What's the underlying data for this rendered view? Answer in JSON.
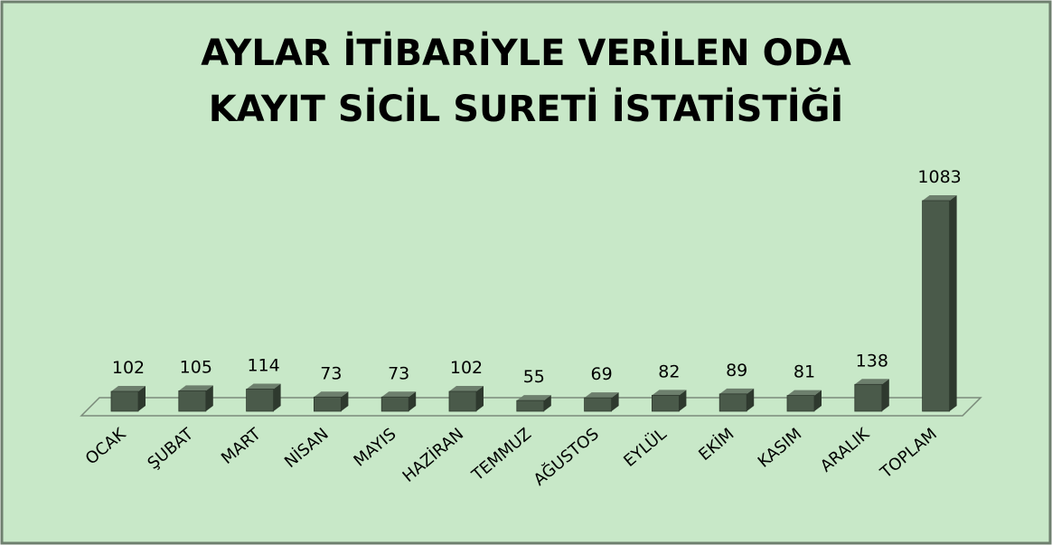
{
  "chart_data": {
    "type": "bar3d",
    "title": [
      "AYLAR İTİBARİYLE VERİLEN ODA",
      "KAYIT SİCİL SURETİ İSTATİSTİĞİ"
    ],
    "categories": [
      "OCAK",
      "ŞUBAT",
      "MART",
      "NİSAN",
      "MAYIS",
      "HAZİRAN",
      "TEMMUZ",
      "AĞUSTOS",
      "EYLÜL",
      "EKİM",
      "KASIM",
      "ARALIK",
      "TOPLAM"
    ],
    "values": [
      102,
      105,
      114,
      73,
      73,
      102,
      55,
      69,
      82,
      89,
      81,
      138,
      1083
    ],
    "color": "#4a5a4a"
  }
}
